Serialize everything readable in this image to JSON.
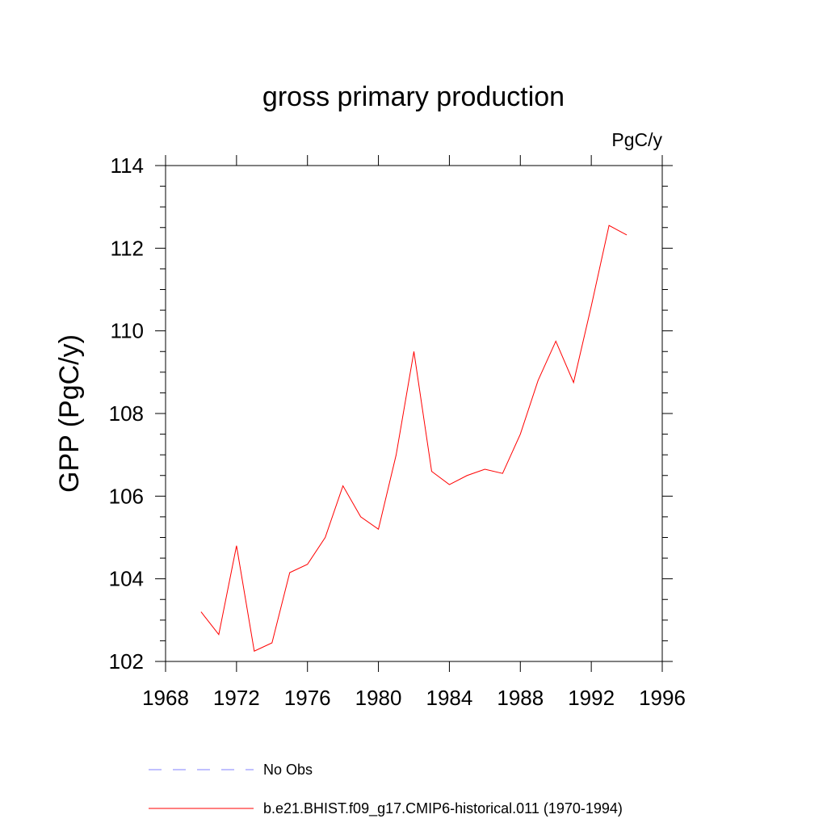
{
  "chart_data": {
    "type": "line",
    "title": "gross primary production",
    "units_label": "PgC/y",
    "xlabel": "",
    "ylabel": "GPP  (PgC/y)",
    "xlim": [
      1968,
      1996
    ],
    "ylim": [
      102,
      114
    ],
    "x_ticks": [
      "1968",
      "1972",
      "1976",
      "1980",
      "1984",
      "1988",
      "1992",
      "1996"
    ],
    "y_ticks": [
      "102",
      "104",
      "106",
      "108",
      "110",
      "112",
      "114"
    ],
    "grid": false,
    "legend_position": "bottom",
    "legend": [
      {
        "name": "No Obs",
        "color": "#8080ff",
        "style": "dashed"
      },
      {
        "name": "b.e21.BHIST.f09_g17.CMIP6-historical.011 (1970-1994)",
        "color": "#ff0000",
        "style": "solid"
      }
    ],
    "series": [
      {
        "name": "b.e21.BHIST.f09_g17.CMIP6-historical.011 (1970-1994)",
        "color": "#ff0000",
        "x": [
          1970,
          1971,
          1972,
          1973,
          1974,
          1975,
          1976,
          1977,
          1978,
          1979,
          1980,
          1981,
          1982,
          1983,
          1984,
          1985,
          1986,
          1987,
          1988,
          1989,
          1990,
          1991,
          1992,
          1993,
          1994
        ],
        "values": [
          103.2,
          102.65,
          104.8,
          102.25,
          102.45,
          104.15,
          104.35,
          105.0,
          106.25,
          105.5,
          105.2,
          107.0,
          109.5,
          106.6,
          106.28,
          106.5,
          106.65,
          106.55,
          107.5,
          108.8,
          109.75,
          108.75,
          110.6,
          112.55,
          112.32
        ]
      }
    ]
  }
}
